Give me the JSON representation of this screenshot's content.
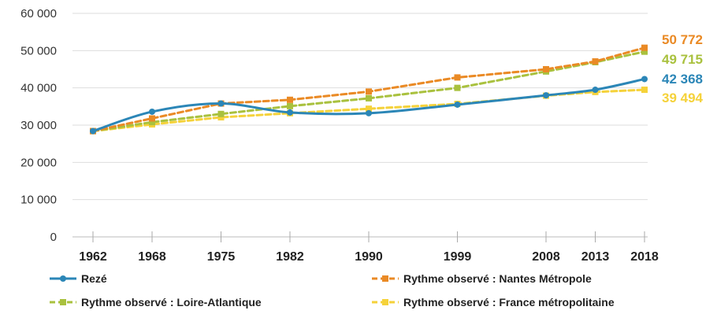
{
  "chart_data": {
    "type": "line",
    "title": "",
    "xlabel": "",
    "ylabel": "",
    "x": [
      1962,
      1968,
      1975,
      1982,
      1990,
      1999,
      2008,
      2013,
      2018
    ],
    "xtick_labels": [
      "1962",
      "1968",
      "1975",
      "1982",
      "1990",
      "1999",
      "2008",
      "2013",
      "2018"
    ],
    "ylim": [
      0,
      60000
    ],
    "yticks": [
      0,
      10000,
      20000,
      30000,
      40000,
      50000,
      60000
    ],
    "ytick_labels": [
      "0",
      "10 000",
      "20 000",
      "30 000",
      "40 000",
      "50 000",
      "60 000"
    ],
    "grid": "horizontal",
    "legend_position": "bottom",
    "series": [
      {
        "name": "Rezé",
        "color": "#2b86b7",
        "style": "solid",
        "marker": "circle",
        "values": [
          28400,
          33600,
          35800,
          33400,
          33200,
          35500,
          38000,
          39500,
          42368
        ],
        "end_label": "42 368"
      },
      {
        "name": "Rythme observé : Nantes Métropole",
        "color": "#ea8a25",
        "style": "dashed",
        "marker": "square",
        "values": [
          28400,
          31800,
          35800,
          36800,
          39000,
          42800,
          45000,
          47100,
          50772
        ],
        "end_label": "50 772"
      },
      {
        "name": "Rythme observé : Loire-Atlantique",
        "color": "#a9c13e",
        "style": "dashed",
        "marker": "square",
        "values": [
          28400,
          30800,
          33000,
          35100,
          37200,
          40000,
          44400,
          46900,
          49715
        ],
        "end_label": "49 715"
      },
      {
        "name": "Rythme observé : France métropolitaine",
        "color": "#f5d23a",
        "style": "dashed",
        "marker": "square",
        "values": [
          28400,
          30200,
          32100,
          33200,
          34400,
          35700,
          37900,
          38900,
          39494
        ],
        "end_label": "39 494"
      }
    ]
  }
}
